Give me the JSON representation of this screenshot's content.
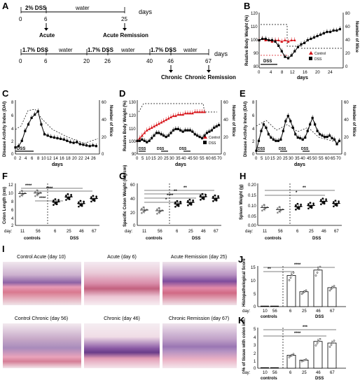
{
  "labels": {
    "A": "A",
    "B": "B",
    "C": "C",
    "D": "D",
    "E": "E",
    "F": "F",
    "G": "G",
    "H": "H",
    "I": "I",
    "J": "J",
    "K": "K"
  },
  "panel_a": {
    "acute": {
      "dss": "2% DSS",
      "water": "water",
      "days": "days",
      "t0": "0",
      "t6": "6",
      "t25": "25",
      "ev1": "Acute",
      "ev2": "Acute  Remission"
    },
    "chronic": {
      "dss1": "1.7% DSS",
      "water1": "water",
      "dss2": "1.7% DSS",
      "water2": "water",
      "dss3": "1.7% DSS",
      "water3": "water",
      "days": "days",
      "ticks": [
        "0",
        "6",
        "20",
        "26",
        "40",
        "46",
        "67"
      ],
      "ev1": "Chronic",
      "ev2": "Chronic Remission"
    }
  },
  "text": {
    "days": "days",
    "dss": "DSS",
    "rbw": "Relative Body Weight (%)",
    "nmice": "Number of Mice",
    "dai": "Disease Activity Index (DAI)",
    "control": "Control",
    "dss_leg": "DSS",
    "day_prefix": "day:",
    "controls": "controls",
    "colon_len": "Colon Length (cm)",
    "spec_colon": "Specific Colon Weight (mg/cm)",
    "spleen": "Spleen Weight (g)",
    "histo": "Histopathological Score",
    "pct": "% of tissue with colon infl.",
    "sig4": "****",
    "sig3": "***",
    "sig2": "**",
    "sig1": "*"
  },
  "histology": {
    "ctrl_acute": "Control Acute (day 10)",
    "acute": "Acute (day 6)",
    "acute_rem": "Acute Remission (day 25)",
    "ctrl_chronic": "Control Chronic (day 56)",
    "chronic": "Chronic (day 46)",
    "chronic_rem": "Chronic Remission (day 67)"
  },
  "colors": {
    "control": "#d7141a",
    "dss": "#000000",
    "ctrl_dot": "#999999",
    "tissue_pink": "#e8a0b8",
    "tissue_purple": "#7e4c9c"
  },
  "chart_data": [
    {
      "panel": "B",
      "type": "line",
      "xlabel": "days",
      "ylabel": "Relative Body Weight (%)",
      "ylabel2": "Number of Mice",
      "xlim": [
        0,
        26
      ],
      "ylim": [
        80,
        120
      ],
      "y2lim": [
        0,
        80
      ],
      "x": [
        0,
        1,
        2,
        3,
        4,
        5,
        6,
        7,
        8,
        9,
        10,
        11,
        12,
        13,
        14,
        15,
        16,
        17,
        18,
        19,
        20,
        21,
        22,
        23,
        24,
        25
      ],
      "series": [
        {
          "name": "Control",
          "values": [
            100,
            101,
            100,
            100,
            99,
            100,
            100,
            99,
            100,
            99,
            100,
            100,
            null,
            null,
            null,
            null,
            null,
            null,
            null,
            null,
            null,
            null,
            null,
            null,
            null,
            null
          ]
        },
        {
          "name": "DSS",
          "values": [
            100,
            101,
            101,
            100,
            100,
            99,
            96,
            92,
            88,
            87,
            89,
            92,
            95,
            97,
            98,
            100,
            101,
            102,
            103,
            104,
            105,
            106,
            106,
            107,
            107,
            108
          ]
        }
      ]
    },
    {
      "panel": "C",
      "type": "line",
      "xlabel": "days",
      "ylabel": "Disease Activity Index (DAI)",
      "ylabel2": "Number of Mice",
      "xlim": [
        0,
        26
      ],
      "ylim": [
        0,
        8
      ],
      "y2lim": [
        0,
        60
      ],
      "x": [
        0,
        1,
        2,
        3,
        4,
        5,
        6,
        7,
        8,
        9,
        10,
        11,
        12,
        13,
        14,
        15,
        16,
        17,
        18,
        19,
        20,
        21,
        22,
        23,
        24,
        25
      ],
      "series": [
        {
          "name": "DSS",
          "values": [
            1,
            1.2,
            2,
            3.5,
            4.5,
            5.5,
            6,
            6.5,
            4.5,
            3,
            2.8,
            2.6,
            2.5,
            2.4,
            2.3,
            2.2,
            2,
            1.8,
            1.7,
            1.8,
            1.5,
            1.4,
            1.3,
            1.2,
            1.3,
            1.2
          ]
        }
      ]
    },
    {
      "panel": "D",
      "type": "line",
      "xlabel": "days",
      "ylabel": "Relative Body Weight (%)",
      "ylabel2": "Number of Mice",
      "xlim": [
        0,
        70
      ],
      "ylim": [
        90,
        130
      ],
      "y2lim": [
        0,
        60
      ],
      "x": [
        0,
        2,
        4,
        6,
        8,
        10,
        12,
        14,
        16,
        18,
        20,
        22,
        24,
        26,
        28,
        30,
        32,
        34,
        36,
        38,
        40,
        42,
        44,
        46,
        48,
        50,
        52,
        54,
        56,
        58,
        60,
        62,
        64,
        66,
        68
      ],
      "series": [
        {
          "name": "Control",
          "values": [
            100,
            102,
            104,
            106,
            108,
            109,
            110,
            111,
            112,
            113,
            114,
            115,
            116,
            117,
            118,
            119,
            119,
            120,
            120,
            120,
            121,
            121,
            121,
            121,
            122,
            122,
            122,
            122,
            122,
            null,
            null,
            null,
            null,
            null,
            null
          ]
        },
        {
          "name": "DSS",
          "values": [
            100,
            100,
            101,
            100,
            99,
            100,
            102,
            104,
            106,
            106,
            105,
            104,
            103,
            104,
            106,
            108,
            109,
            109,
            108,
            107,
            108,
            108,
            108,
            107,
            105,
            104,
            103,
            102,
            104,
            106,
            107,
            108,
            110,
            111,
            112
          ]
        }
      ]
    },
    {
      "panel": "E",
      "type": "line",
      "xlabel": "days",
      "ylabel": "Disease Activity Index (DAI)",
      "ylabel2": "Number of Mice",
      "xlim": [
        0,
        70
      ],
      "ylim": [
        0,
        8
      ],
      "y2lim": [
        0,
        60
      ],
      "x": [
        0,
        2,
        4,
        6,
        8,
        10,
        12,
        14,
        16,
        18,
        20,
        22,
        24,
        26,
        28,
        30,
        32,
        34,
        36,
        38,
        40,
        42,
        44,
        46,
        48,
        50,
        52,
        54,
        56,
        58,
        60,
        62,
        64,
        66,
        68
      ],
      "series": [
        {
          "name": "DSS",
          "values": [
            0.5,
            2,
            3.5,
            4.5,
            4,
            3,
            2.5,
            2.2,
            2,
            2,
            2.2,
            3.5,
            5,
            5.8,
            5,
            4,
            3,
            2.5,
            2.4,
            2.2,
            2.5,
            3.5,
            4.5,
            5.5,
            4.5,
            3.5,
            3,
            2.8,
            2.6,
            2.6,
            2.8,
            2.4,
            2.2,
            1.5,
            2
          ]
        }
      ]
    },
    {
      "panel": "F",
      "type": "scatter",
      "ylabel": "Colon Length (cm)",
      "ylim": [
        2,
        12
      ],
      "categories": [
        "11",
        "56",
        "6",
        "25",
        "46",
        "67"
      ],
      "groups": [
        "controls",
        "controls",
        "DSS",
        "DSS",
        "DSS",
        "DSS"
      ],
      "means": [
        9.6,
        9.7,
        7.6,
        8.8,
        7.2,
        8.4
      ]
    },
    {
      "panel": "G",
      "type": "scatter",
      "ylabel": "Specific Colon Weight (mg/cm)",
      "ylim": [
        0,
        60
      ],
      "categories": [
        "11",
        "56",
        "6",
        "25",
        "46",
        "67"
      ],
      "groups": [
        "controls",
        "controls",
        "DSS",
        "DSS",
        "DSS",
        "DSS"
      ],
      "means": [
        22,
        21,
        31,
        33,
        41,
        39
      ]
    },
    {
      "panel": "H",
      "type": "scatter",
      "ylabel": "Spleen Weight (g)",
      "ylim": [
        0,
        0.2
      ],
      "categories": [
        "11",
        "56",
        "6",
        "25",
        "46",
        "67"
      ],
      "groups": [
        "controls",
        "controls",
        "DSS",
        "DSS",
        "DSS",
        "DSS"
      ],
      "means": [
        0.085,
        0.075,
        0.09,
        0.095,
        0.115,
        0.105
      ]
    },
    {
      "panel": "J",
      "type": "bar",
      "ylabel": "Histopathological Score",
      "ylim": [
        0,
        15
      ],
      "categories": [
        "10",
        "56",
        "6",
        "25",
        "46",
        "67"
      ],
      "groups": [
        "controls",
        "controls",
        "DSS",
        "DSS",
        "DSS",
        "DSS"
      ],
      "values": [
        0,
        0,
        11.5,
        5.5,
        13.5,
        7
      ]
    },
    {
      "panel": "K",
      "type": "bar",
      "ylabel": "% of tissue with colon infl.",
      "ylim": [
        0,
        5
      ],
      "categories": [
        "10",
        "56",
        "6",
        "25",
        "46",
        "67"
      ],
      "groups": [
        "controls",
        "controls",
        "DSS",
        "DSS",
        "DSS",
        "DSS"
      ],
      "values": [
        0,
        0,
        1.6,
        1.0,
        3.3,
        3.1
      ]
    }
  ]
}
